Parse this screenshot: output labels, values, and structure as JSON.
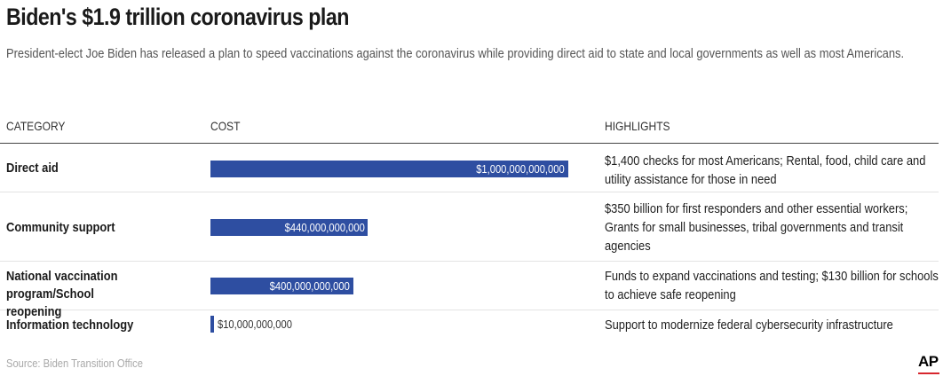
{
  "title": "Biden's $1.9 trillion coronavirus plan",
  "subtitle": "President-elect Joe Biden has released a plan to speed vaccinations against the coronavirus while providing direct aid to state and local governments as well as most Americans.",
  "headers": {
    "category": "CATEGORY",
    "cost": "COST",
    "highlights": "HIGHLIGHTS"
  },
  "source": "Source: Biden Transition Office",
  "logo": "AP",
  "colors": {
    "bar": "#2e4ea1",
    "logo_accent": "#d7262e"
  },
  "chart_data": {
    "type": "bar",
    "orientation": "horizontal",
    "categories": [
      "Direct aid",
      "Community support",
      "National vaccination program/School reopening",
      "Information technology"
    ],
    "values": [
      1000000000000,
      440000000000,
      400000000000,
      10000000000
    ],
    "value_labels": [
      "$1,000,000,000,000",
      "$440,000,000,000",
      "$400,000,000,000",
      "$10,000,000,000"
    ],
    "highlights": [
      "$1,400 checks for most Americans; Rental, food, child care and utility assistance for those in need",
      "$350 billion for first responders and other essential workers; Grants for small businesses, tribal governments and transit agencies",
      "Funds to expand vaccinations and testing; $130 billion for schools to achieve safe reopening",
      "Support to modernize federal cybersecurity infrastructure"
    ],
    "xlim": [
      0,
      1000000000000
    ]
  }
}
